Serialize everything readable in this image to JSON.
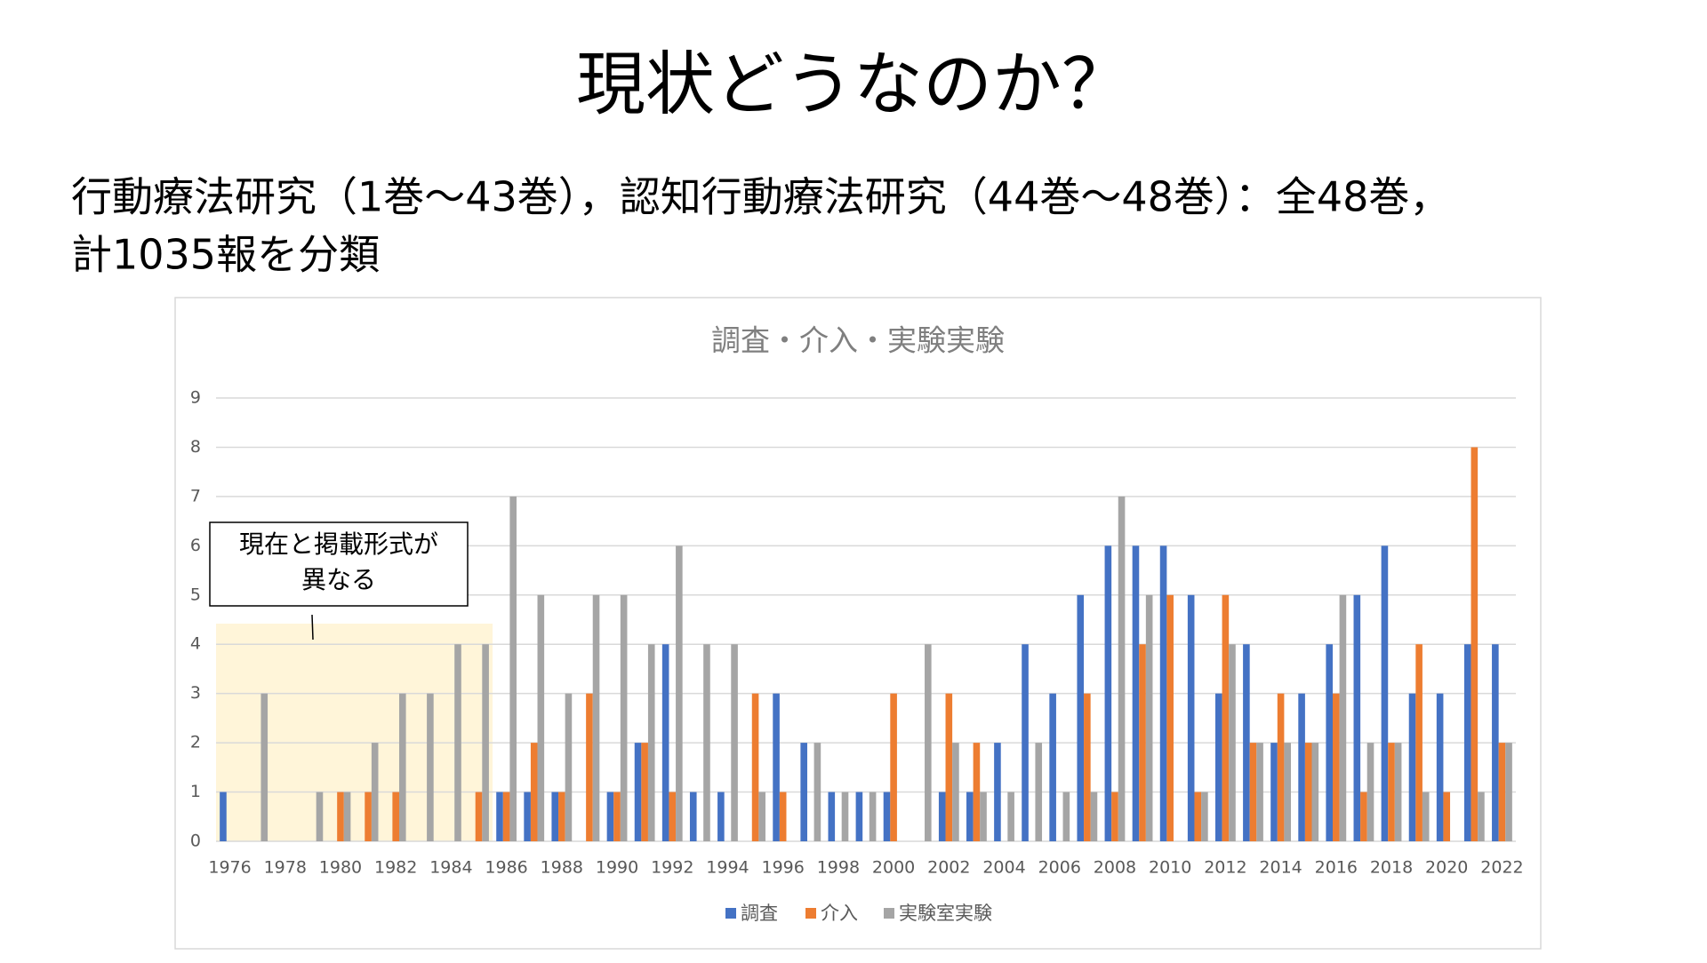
{
  "title": "現状どうなのか？",
  "subtitle": [
    "行動療法研究（1巻～43巻），認知行動療法研究（44巻～48巻）：全48巻，",
    "計1035報を分類"
  ],
  "chart_data": {
    "type": "bar",
    "title": "調査・介入・実験実験",
    "categories": [
      "1976",
      null,
      "1978",
      null,
      "1980",
      null,
      "1982",
      null,
      "1984",
      null,
      "1986",
      null,
      "1988",
      null,
      "1990",
      null,
      "1992",
      null,
      "1994",
      null,
      "1996",
      null,
      "1998",
      null,
      "2000",
      null,
      "2002",
      null,
      "2004",
      null,
      "2006",
      null,
      "2008",
      null,
      "2010",
      null,
      "2012",
      null,
      "2014",
      null,
      "2016",
      null,
      "2018",
      null,
      "2020",
      null,
      "2022"
    ],
    "series": [
      {
        "name": "調査",
        "color": "#4472c4",
        "values": [
          1,
          0,
          0,
          0,
          0,
          0,
          0,
          0,
          0,
          0,
          1,
          1,
          1,
          0,
          1,
          2,
          4,
          1,
          1,
          0,
          3,
          2,
          1,
          1,
          1,
          0,
          1,
          1,
          2,
          4,
          3,
          5,
          6,
          6,
          6,
          5,
          3,
          4,
          2,
          3,
          4,
          5,
          6,
          3,
          3,
          4,
          4
        ]
      },
      {
        "name": "介入",
        "color": "#ed7d31",
        "values": [
          0,
          0,
          0,
          0,
          1,
          1,
          1,
          0,
          0,
          1,
          1,
          2,
          1,
          3,
          1,
          2,
          1,
          0,
          0,
          3,
          1,
          0,
          0,
          0,
          3,
          0,
          3,
          2,
          0,
          0,
          0,
          3,
          1,
          4,
          5,
          1,
          5,
          2,
          3,
          2,
          3,
          1,
          2,
          4,
          1,
          8,
          2
        ]
      },
      {
        "name": "実験室実験",
        "color": "#a5a5a5",
        "values": [
          0,
          3,
          0,
          1,
          1,
          2,
          3,
          3,
          4,
          4,
          7,
          5,
          3,
          5,
          5,
          4,
          6,
          4,
          4,
          1,
          0,
          2,
          1,
          1,
          0,
          4,
          2,
          1,
          1,
          2,
          1,
          1,
          7,
          5,
          0,
          1,
          4,
          2,
          2,
          2,
          5,
          2,
          2,
          1,
          0,
          1,
          2
        ]
      }
    ],
    "ylim": [
      0,
      9
    ],
    "yticks": [
      0,
      1,
      2,
      3,
      4,
      5,
      6,
      7,
      8,
      9
    ],
    "grid": true,
    "legend": "bottom",
    "annotation": [
      "現在と掲載形式が",
      "異なる"
    ]
  }
}
